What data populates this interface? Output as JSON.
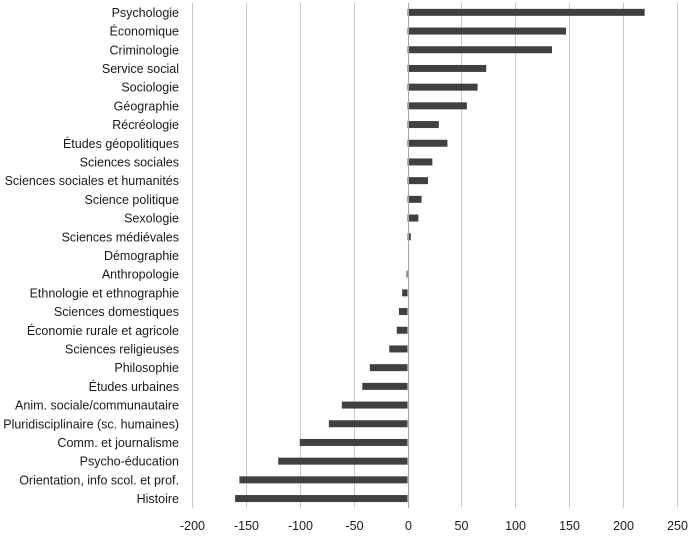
{
  "chart_data": {
    "type": "bar",
    "orientation": "horizontal",
    "title": "",
    "xlabel": "",
    "ylabel": "",
    "xlim": [
      -200,
      250
    ],
    "xticks": [
      -200,
      -150,
      -100,
      -50,
      0,
      50,
      100,
      150,
      200,
      250
    ],
    "grid": true,
    "legend": "none",
    "bar_color": "#404040",
    "categories": [
      "Psychologie",
      "Économique",
      "Criminologie",
      "Service social",
      "Sociologie",
      "Géographie",
      "Récréologie",
      "Études géopolitiques",
      "Sciences sociales",
      "Sciences sociales et humanités",
      "Science politique",
      "Sexologie",
      "Sciences médiévales",
      "Démographie",
      "Anthropologie",
      "Ethnologie et ethnographie",
      "Sciences domestiques",
      "Économie rurale et agricole",
      "Sciences religieuses",
      "Philosophie",
      "Études urbaines",
      "Anim. sociale/communautaire",
      "Pluridisciplinaire (sc. humaines)",
      "Comm. et journalisme",
      "Psycho-éducation",
      "Orientation, info scol. et prof.",
      "Histoire"
    ],
    "values": [
      220,
      147,
      134,
      73,
      65,
      55,
      29,
      37,
      23,
      19,
      13,
      10,
      3,
      0,
      -1,
      -5,
      -8,
      -10,
      -17,
      -35,
      -42,
      -61,
      -73,
      -100,
      -120,
      -156,
      -160
    ]
  }
}
